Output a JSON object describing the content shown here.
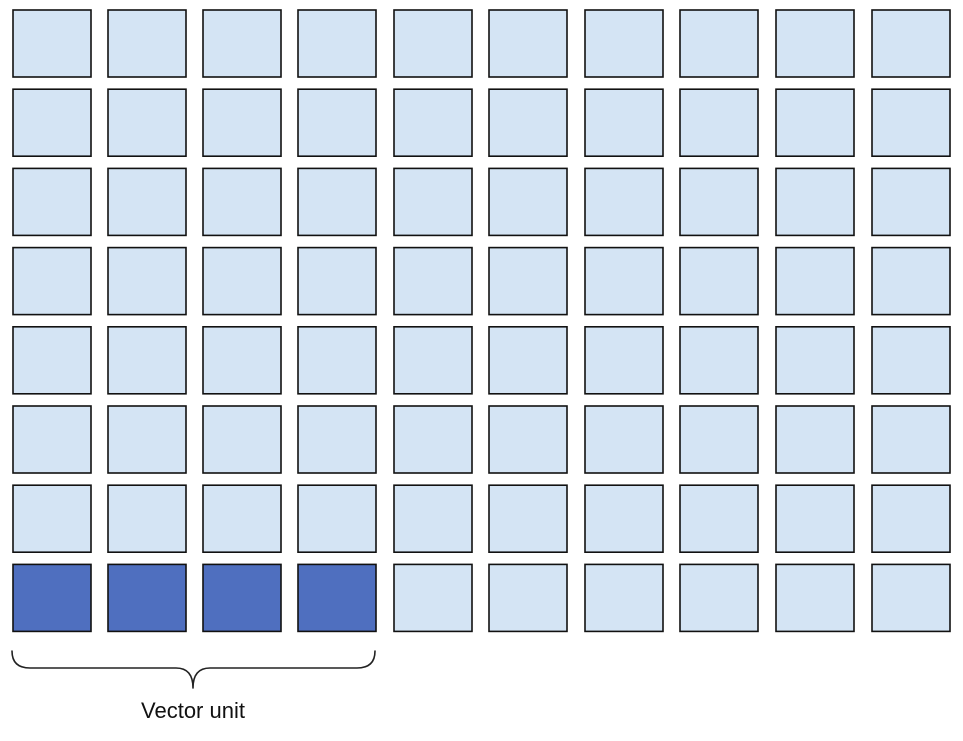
{
  "grid": {
    "rows": 8,
    "cols": 10,
    "highlighted_row": 7,
    "highlighted_cols": [
      0,
      1,
      2,
      3
    ]
  },
  "colors": {
    "cell_fill": "#d4e4f4",
    "cell_highlight": "#4f6fbf",
    "cell_border": "#111111"
  },
  "annotation": {
    "label": "Vector unit",
    "spans_cols": [
      0,
      3
    ]
  }
}
